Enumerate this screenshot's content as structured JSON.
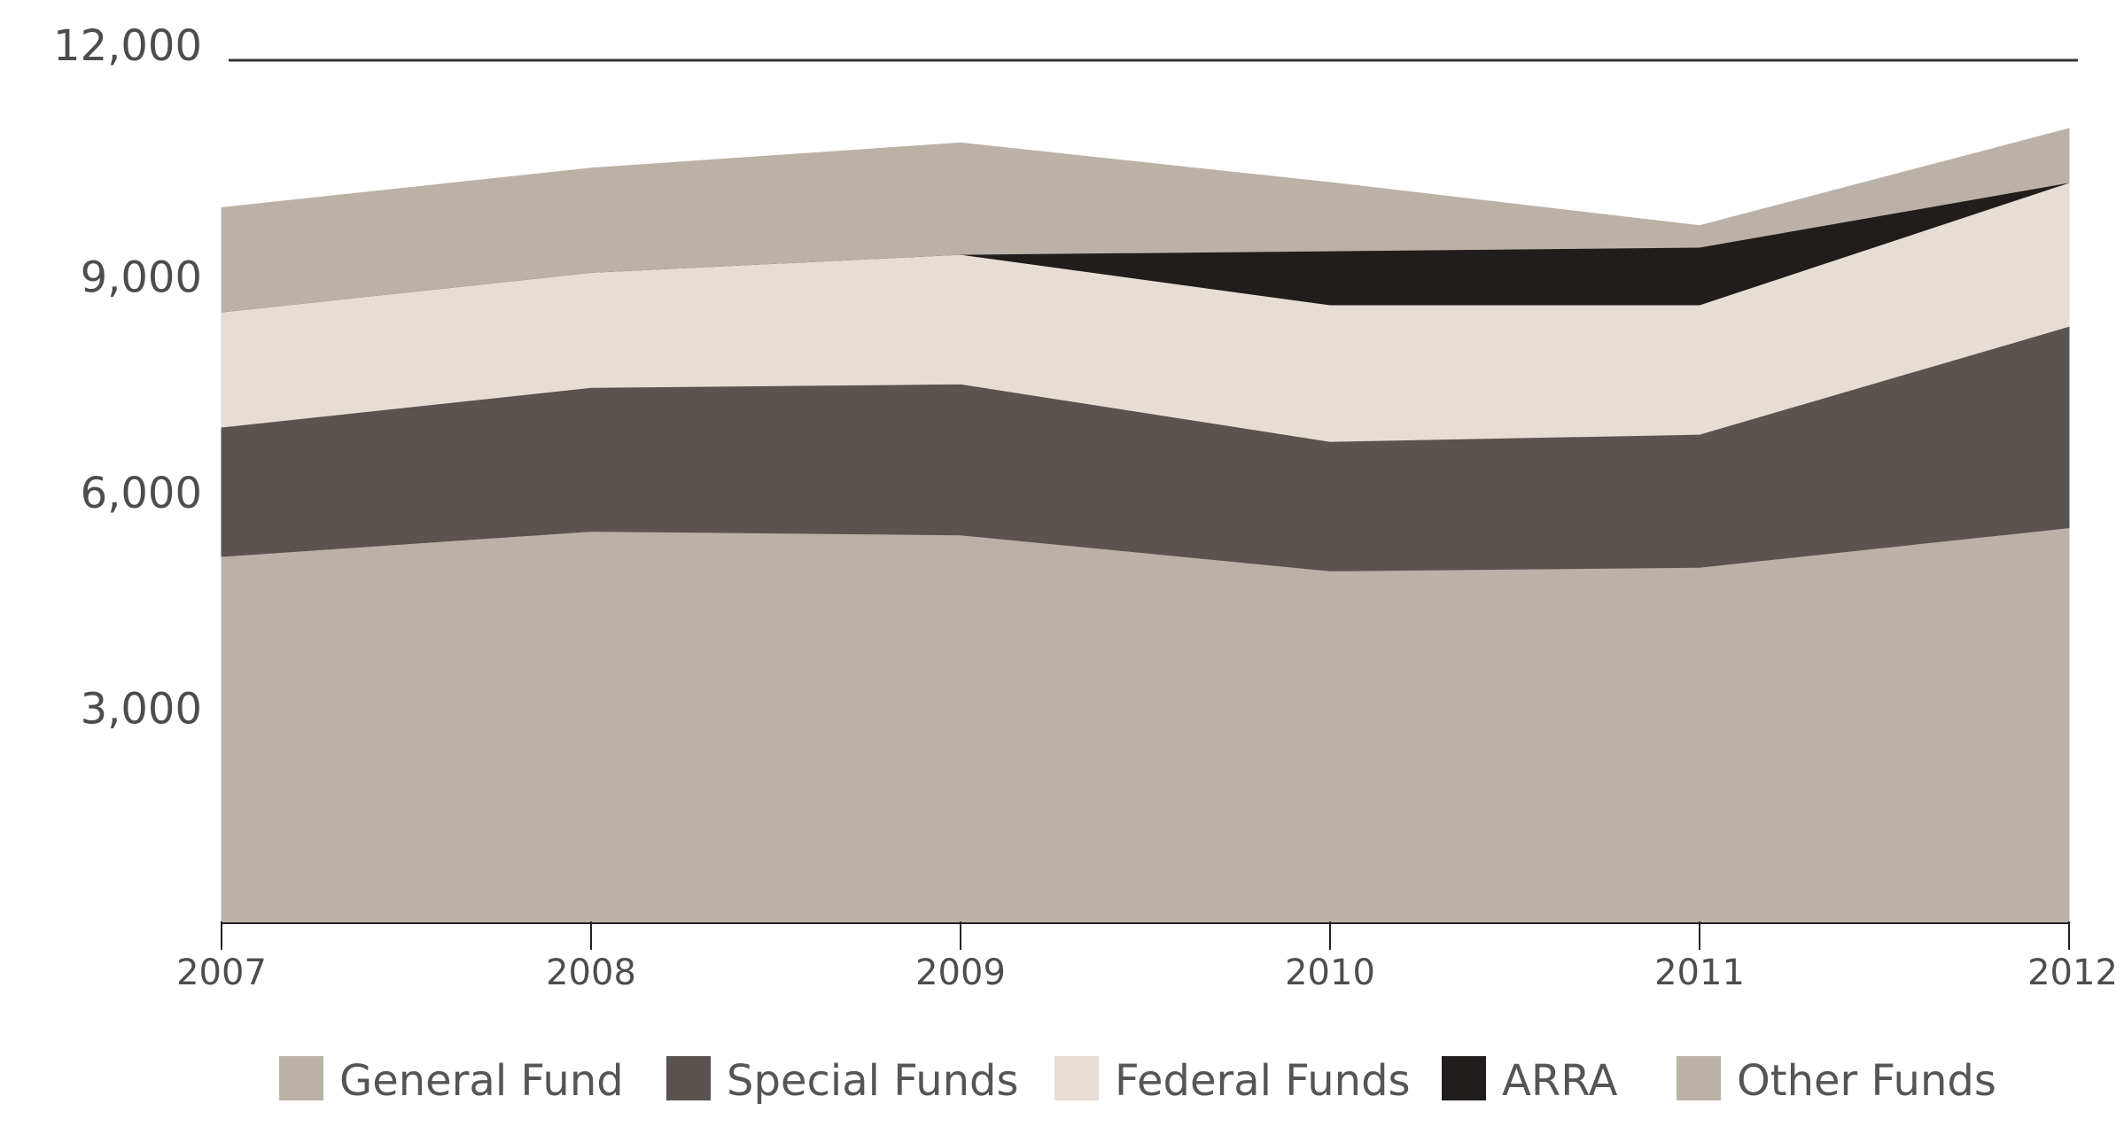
{
  "chart_data": {
    "type": "area",
    "stacked": true,
    "title": "",
    "xlabel": "",
    "ylabel": "",
    "x": [
      "2007",
      "2008",
      "2009",
      "2010",
      "2011",
      "2012"
    ],
    "ylim": [
      0,
      12000
    ],
    "yticks": [
      3000,
      6000,
      9000,
      12000
    ],
    "ytick_labels": [
      "3,000",
      "6,000",
      "9,000",
      "12,000"
    ],
    "grid": false,
    "legend_position": "bottom",
    "series": [
      {
        "name": "General Fund",
        "color": "#bbb1a7",
        "values": [
          5100,
          5450,
          5400,
          4900,
          4950,
          5500
        ]
      },
      {
        "name": "Special Funds",
        "color": "#5a5350",
        "values": [
          1800,
          2000,
          2100,
          1800,
          1850,
          2800
        ]
      },
      {
        "name": "Federal Funds",
        "color": "#e6ddd5",
        "values": [
          1600,
          1600,
          1800,
          1900,
          1800,
          2000
        ]
      },
      {
        "name": "ARRA",
        "color": "#201d1c",
        "values": [
          0,
          0,
          0,
          750,
          800,
          0
        ]
      },
      {
        "name": "Other Funds",
        "color": "#bbb1a7",
        "values": [
          1450,
          1450,
          1550,
          950,
          300,
          750
        ]
      }
    ]
  }
}
